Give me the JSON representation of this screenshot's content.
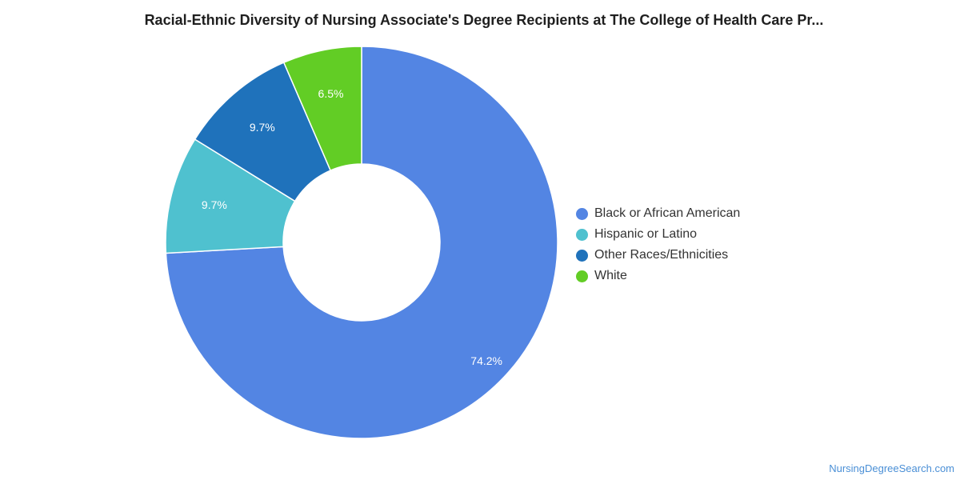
{
  "title": "Racial-Ethnic Diversity of Nursing Associate's Degree Recipients at The College of Health Care Pr...",
  "source": "NursingDegreeSearch.com",
  "chart_data": {
    "type": "pie",
    "donut": true,
    "legend_position": "right",
    "categories": [
      "Black or African American",
      "Hispanic or Latino",
      "Other Races/Ethnicities",
      "White"
    ],
    "values": [
      74.2,
      9.7,
      9.7,
      6.5
    ],
    "labels": [
      "74.2%",
      "9.7%",
      "9.7%",
      "6.5%"
    ],
    "colors": [
      "#5385e3",
      "#4fc1cf",
      "#1f72bb",
      "#62cd25"
    ]
  }
}
